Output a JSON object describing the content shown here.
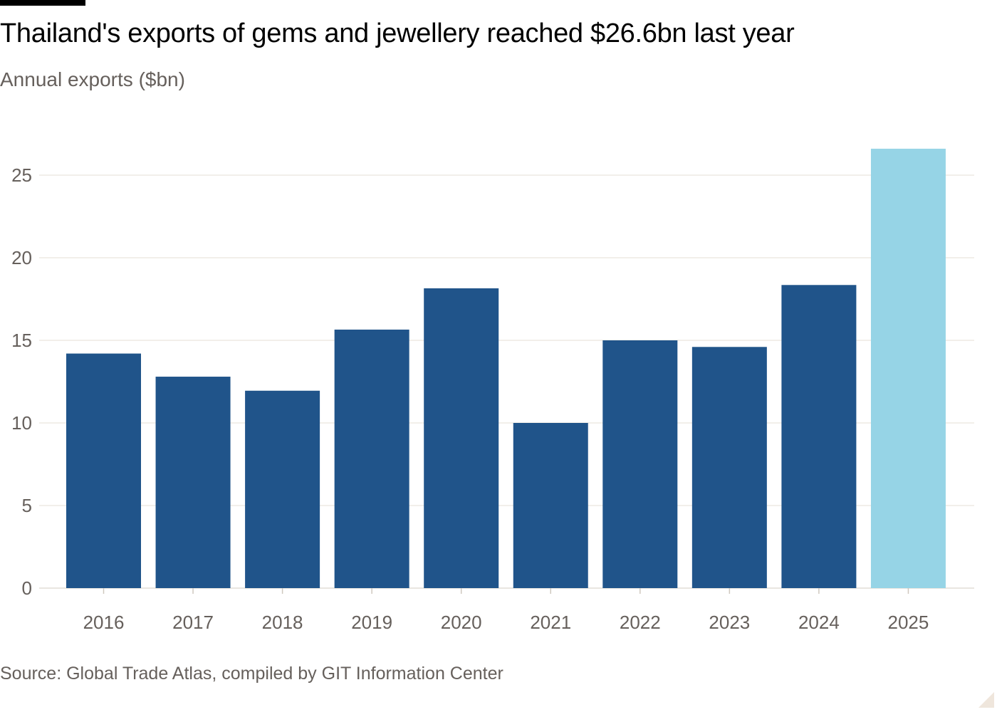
{
  "title": "Thailand's exports of gems and jewellery reached $26.6bn last year",
  "subtitle": "Annual exports ($bn)",
  "source": "Source: Global Trade Atlas, compiled by GIT Information Center",
  "colors": {
    "bar": "#20548a",
    "highlight": "#96d4e6",
    "grid": "#eeeae4",
    "axis_text": "#66605c"
  },
  "chart_data": {
    "type": "bar",
    "categories": [
      "2016",
      "2017",
      "2018",
      "2019",
      "2020",
      "2021",
      "2022",
      "2023",
      "2024",
      "2025"
    ],
    "values": [
      14.2,
      12.8,
      11.95,
      15.65,
      18.15,
      10.0,
      15.0,
      14.6,
      18.35,
      26.6
    ],
    "highlight_index": 9,
    "ylim": [
      0,
      27
    ],
    "yticks": [
      0,
      5,
      10,
      15,
      20,
      25
    ],
    "title": "Thailand's exports of gems and jewellery reached $26.6bn last year",
    "subtitle": "Annual exports ($bn)",
    "xlabel": "",
    "ylabel": "",
    "grid": true
  }
}
